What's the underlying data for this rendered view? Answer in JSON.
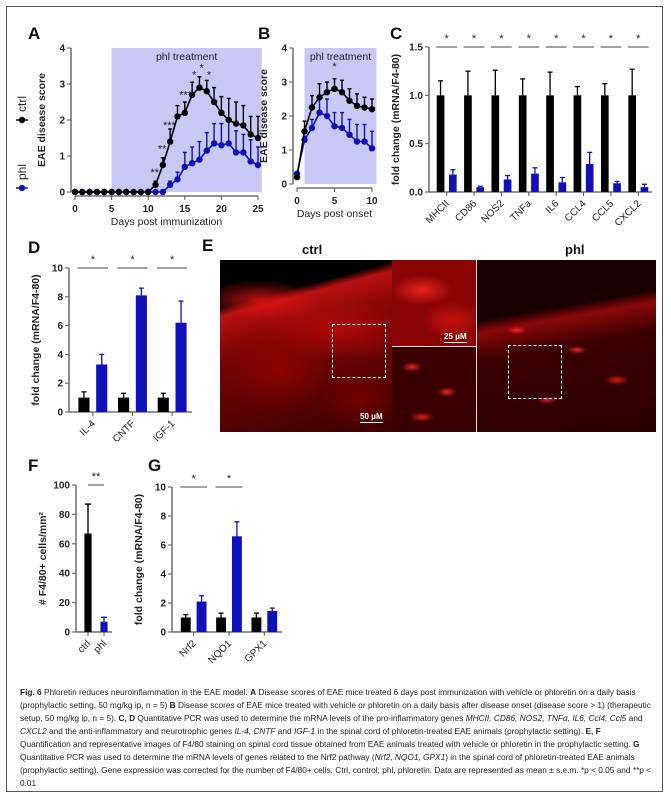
{
  "panel_labels": [
    "A",
    "B",
    "C",
    "D",
    "E",
    "F",
    "G"
  ],
  "colors": {
    "ctrl": "#000000",
    "phl": "#1010b8",
    "shade": "#c8c8f4"
  },
  "chart_data": [
    {
      "panel": "A",
      "type": "line",
      "xlabel": "Days post immunization",
      "ylabel": "EAE disease score",
      "xlim": [
        0,
        25
      ],
      "ylim": [
        0,
        4
      ],
      "xticks": [
        0,
        5,
        10,
        15,
        20,
        25
      ],
      "yticks": [
        0,
        1,
        2,
        3,
        4
      ],
      "shaded_region": [
        5,
        25.5
      ],
      "shaded_label": "phl treatment",
      "legend": {
        "placement": "left-vertical",
        "entries": [
          "ctrl",
          "phl"
        ]
      },
      "x": [
        0,
        1,
        2,
        3,
        4,
        5,
        6,
        7,
        8,
        9,
        10,
        11,
        12,
        13,
        14,
        15,
        16,
        17,
        18,
        19,
        20,
        21,
        22,
        23,
        24,
        25
      ],
      "series": [
        {
          "name": "ctrl",
          "values": [
            0,
            0,
            0,
            0,
            0,
            0,
            0,
            0,
            0,
            0,
            0,
            0.2,
            0.75,
            1.4,
            2.1,
            2.2,
            2.7,
            2.9,
            2.8,
            2.5,
            2.2,
            2.0,
            1.9,
            1.85,
            1.6,
            1.5
          ],
          "errors": [
            0,
            0,
            0,
            0,
            0,
            0,
            0,
            0,
            0,
            0,
            0,
            0.1,
            0.2,
            0.35,
            0.3,
            0.3,
            0.35,
            0.3,
            0.3,
            0.4,
            0.45,
            0.6,
            0.6,
            0.55,
            0.5,
            0.6
          ]
        },
        {
          "name": "phl",
          "values": [
            0,
            0,
            0,
            0,
            0,
            0,
            0,
            0,
            0,
            0,
            0,
            0,
            0,
            0.2,
            0.35,
            0.7,
            0.8,
            0.9,
            1.15,
            1.35,
            1.3,
            1.35,
            1.1,
            1.1,
            0.85,
            0.75
          ],
          "errors": [
            0,
            0,
            0,
            0,
            0,
            0,
            0,
            0,
            0,
            0,
            0,
            0,
            0,
            0.1,
            0.2,
            0.4,
            0.45,
            0.5,
            0.5,
            0.55,
            0.6,
            0.7,
            0.6,
            0.5,
            0.6,
            0.5
          ]
        }
      ],
      "annotations": [
        {
          "x": 10.9,
          "y": 0.45,
          "label": "**"
        },
        {
          "x": 11.9,
          "y": 1.1,
          "label": "**"
        },
        {
          "x": 12.9,
          "y": 1.75,
          "label": "***"
        },
        {
          "x": 15.1,
          "y": 2.6,
          "label": "***"
        },
        {
          "x": 16.3,
          "y": 3.15,
          "label": "*"
        },
        {
          "x": 17.3,
          "y": 3.35,
          "label": "*"
        },
        {
          "x": 18.3,
          "y": 3.15,
          "label": "*"
        }
      ]
    },
    {
      "panel": "B",
      "type": "line",
      "xlabel": "Days post onset",
      "ylabel": "EAE disease score",
      "xlim": [
        0,
        10
      ],
      "ylim": [
        0,
        4
      ],
      "xticks": [
        0,
        5,
        10
      ],
      "yticks": [
        0,
        1,
        2,
        3,
        4
      ],
      "shaded_region": [
        1,
        10.6
      ],
      "shaded_label": "phl treatment",
      "x": [
        0,
        1,
        2,
        3,
        4,
        5,
        6,
        7,
        8,
        9,
        10
      ],
      "series": [
        {
          "name": "ctrl",
          "values": [
            0.2,
            1.55,
            2.25,
            2.55,
            2.7,
            2.8,
            2.7,
            2.45,
            2.3,
            2.25,
            2.2
          ],
          "errors": [
            0.05,
            0.3,
            0.35,
            0.4,
            0.3,
            0.3,
            0.35,
            0.35,
            0.35,
            0.3,
            0.3
          ]
        },
        {
          "name": "phl",
          "values": [
            0.3,
            1.3,
            1.65,
            2.1,
            2.0,
            1.7,
            1.65,
            1.45,
            1.25,
            1.25,
            1.05
          ],
          "errors": [
            0.05,
            0.1,
            0.25,
            0.4,
            0.5,
            0.4,
            0.45,
            0.45,
            0.5,
            0.5,
            0.5
          ]
        }
      ],
      "annotations": [
        {
          "x": 5,
          "y": 3.35,
          "label": "*"
        }
      ]
    },
    {
      "panel": "C",
      "type": "bar",
      "ylabel": "fold change (mRNA/F4-80)",
      "ylim": [
        0,
        1.5
      ],
      "yticks": [
        "0.0",
        "0.5",
        "1.0",
        "1.5"
      ],
      "categories": [
        "MHCII",
        "CD86",
        "NOS2",
        "TNFa",
        "IL6",
        "CCL4",
        "CCL5",
        "CXCL2"
      ],
      "series": [
        {
          "name": "ctrl",
          "values": [
            1,
            1,
            1,
            1,
            1,
            1,
            1,
            1
          ],
          "errors": [
            0.15,
            0.25,
            0.26,
            0.17,
            0.24,
            0.09,
            0.12,
            0.27
          ]
        },
        {
          "name": "phl",
          "values": [
            0.18,
            0.05,
            0.13,
            0.19,
            0.1,
            0.29,
            0.09,
            0.05
          ],
          "errors": [
            0.05,
            0.01,
            0.04,
            0.06,
            0.05,
            0.12,
            0.02,
            0.03
          ]
        }
      ],
      "significance": [
        "*",
        "*",
        "*",
        "*",
        "*",
        "*",
        "*",
        "*"
      ]
    },
    {
      "panel": "D",
      "type": "bar",
      "ylabel": "fold change (mRNA/F4-80)",
      "ylim": [
        0,
        10
      ],
      "yticks": [
        "0",
        "2",
        "4",
        "6",
        "8",
        "10"
      ],
      "categories": [
        "IL-4",
        "CNTF",
        "IGF-1"
      ],
      "series": [
        {
          "name": "ctrl",
          "values": [
            1,
            1,
            1
          ],
          "errors": [
            0.4,
            0.3,
            0.3
          ]
        },
        {
          "name": "phl",
          "values": [
            3.3,
            8.1,
            6.2
          ],
          "errors": [
            0.7,
            0.5,
            1.5
          ]
        }
      ],
      "significance": [
        "*",
        "*",
        "*"
      ]
    },
    {
      "panel": "F",
      "type": "bar",
      "single": true,
      "ylabel": "# F4/80+ cells/mm²",
      "ylim": [
        0,
        100
      ],
      "yticks": [
        "0",
        "20",
        "40",
        "60",
        "80",
        "100"
      ],
      "categories": [
        "ctrl",
        "phl"
      ],
      "series": [
        {
          "values": [
            67,
            7
          ],
          "errors": [
            20,
            3
          ]
        }
      ],
      "significance": [
        "**"
      ]
    },
    {
      "panel": "G",
      "type": "bar",
      "ylabel": "fold change (mRNA/F4-80)",
      "ylim": [
        0,
        10
      ],
      "yticks": [
        "0",
        "2",
        "4",
        "6",
        "8",
        "10"
      ],
      "categories": [
        "Nrf2",
        "NQO1",
        "GPX1"
      ],
      "series": [
        {
          "name": "ctrl",
          "values": [
            1,
            1,
            1
          ],
          "errors": [
            0.2,
            0.3,
            0.3
          ]
        },
        {
          "name": "phl",
          "values": [
            2.1,
            6.6,
            1.45
          ],
          "errors": [
            0.4,
            1.0,
            0.2
          ]
        }
      ],
      "significance": [
        "*",
        "*",
        ""
      ]
    }
  ],
  "panel_e": {
    "title_ctrl": "ctrl",
    "title_phl": "phl",
    "scale_large": "50 μM",
    "scale_small": "25 μM"
  },
  "caption": [
    {
      "t": "Fig. 6",
      "s": "b"
    },
    {
      "t": " Phloretin reduces neuroinflammation in the EAE model. "
    },
    {
      "t": "A",
      "s": "b"
    },
    {
      "t": " Disease scores of EAE mice treated 6 days post immunization with vehicle or phloretin on a daily basis (prophylactic setting, 50 mg/kg ip, n = 5) "
    },
    {
      "t": "B",
      "s": "b"
    },
    {
      "t": " Disease scores of EAE mice treated with vehicle or phloretin on a daily basis after disease onset (disease score > 1) (therapeutic setup, 50 mg/kg ip, n = 5). "
    },
    {
      "t": "C, D",
      "s": "b"
    },
    {
      "t": " Quantitative PCR was used to determine the mRNA levels of the pro-inflammatory genes "
    },
    {
      "t": "MHCII, CD86, NOS2, TNFα, IL6, Ccl4, Ccl5",
      "s": "i"
    },
    {
      "t": " and "
    },
    {
      "t": "CXCL2",
      "s": "i"
    },
    {
      "t": " and the anti-inflammatory and neurotrophic genes "
    },
    {
      "t": "IL-4, CNTF",
      "s": "i"
    },
    {
      "t": " and "
    },
    {
      "t": "IGF-1",
      "s": "i"
    },
    {
      "t": " in the spinal cord of phloretin-treated EAE animals (prophylactic setting). "
    },
    {
      "t": "E, F",
      "s": "b"
    },
    {
      "t": " Quantification and representative images of F4/80 staining on spinal cord tissue obtained from EAE animals treated with vehicle or phloretin in the prophylactic setting. "
    },
    {
      "t": "G",
      "s": "b"
    },
    {
      "t": " Quantitative PCR was used to determine the mRNA levels of genes related to the Nrf2 pathway ("
    },
    {
      "t": "Nrf2, NQO1, GPX1",
      "s": "i"
    },
    {
      "t": ") in the spinal cord of phloretin-treated EAE animals (prophylactic setting). Gene expression was corrected for the number of F4/80+ cells. Ctrl, control; phl, phloretin. Data are represented as mean ± s.e.m. *p < 0.05 and **p < 0.01"
    }
  ]
}
